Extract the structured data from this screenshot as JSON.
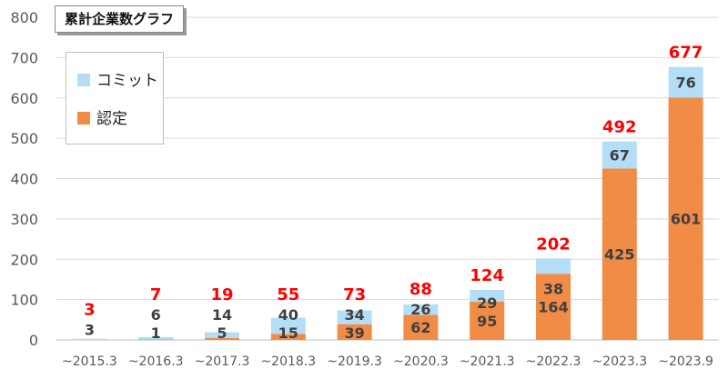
{
  "chart_data": {
    "type": "bar",
    "stacked": true,
    "title": "累計企業数グラフ",
    "categories": [
      "~2015.3",
      "~2016.3",
      "~2017.3",
      "~2018.3",
      "~2019.3",
      "~2020.3",
      "~2021.3",
      "~2022.3",
      "~2023.3",
      "~2023.9"
    ],
    "series": [
      {
        "name": "認定",
        "color": "#f08c45",
        "values": [
          0,
          1,
          5,
          15,
          39,
          62,
          95,
          164,
          425,
          601
        ]
      },
      {
        "name": "コミット",
        "color": "#b4ddf7",
        "values": [
          3,
          6,
          14,
          40,
          34,
          26,
          29,
          38,
          67,
          76
        ]
      }
    ],
    "totals": [
      3,
      7,
      19,
      55,
      73,
      88,
      124,
      202,
      492,
      677
    ],
    "ylim": [
      0,
      800
    ],
    "yticks": [
      "0",
      "100",
      "200",
      "300",
      "400",
      "500",
      "600",
      "700",
      "800"
    ],
    "grid": true,
    "legend_position": "top-left",
    "total_label_color": "#ff0000",
    "value_label_color": "#404040"
  }
}
